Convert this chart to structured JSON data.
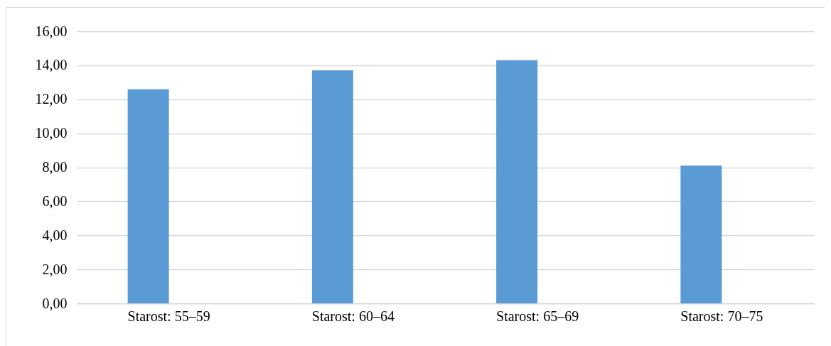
{
  "chart_data": {
    "type": "bar",
    "categories": [
      "Starost:  55–59",
      "Starost:  60–64",
      "Starost:  65–69",
      "Starost:  70–75"
    ],
    "series": [
      {
        "color": "#5b9bd5",
        "values": [
          12.6,
          13.7,
          14.3,
          8.1
        ]
      }
    ],
    "ylim": [
      0,
      16
    ],
    "yticks": [
      {
        "value": 0,
        "label": "0,00"
      },
      {
        "value": 2,
        "label": "2,00"
      },
      {
        "value": 4,
        "label": "4,00"
      },
      {
        "value": 6,
        "label": "6,00"
      },
      {
        "value": 8,
        "label": "8,00"
      },
      {
        "value": 10,
        "label": "10,00"
      },
      {
        "value": 12,
        "label": "12,00"
      },
      {
        "value": 14,
        "label": "14,00"
      },
      {
        "value": 16,
        "label": "16,00"
      }
    ],
    "grid": "y",
    "legend": false
  }
}
